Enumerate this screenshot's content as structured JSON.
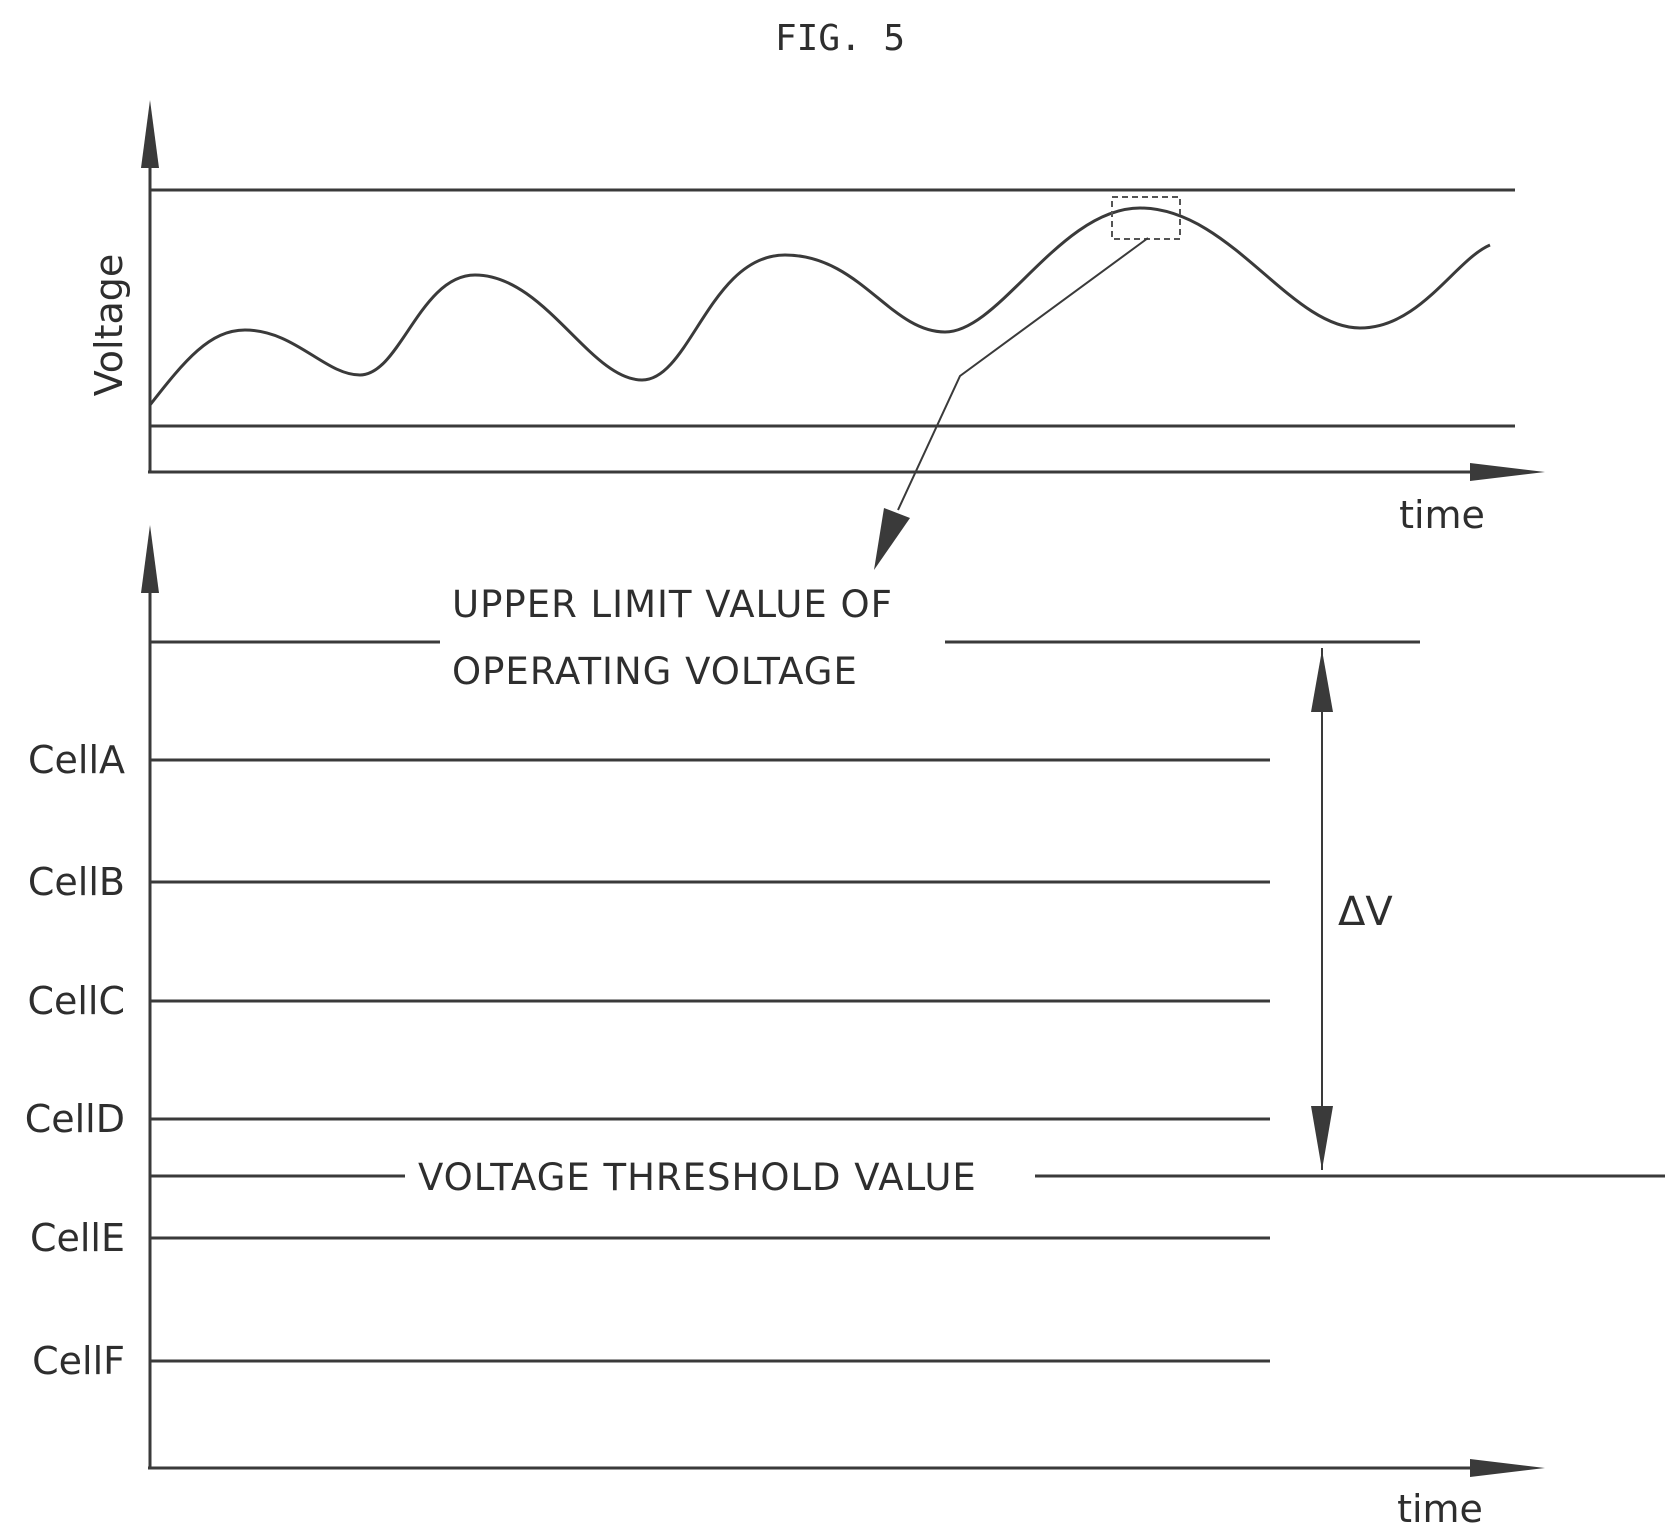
{
  "figure_label": "FIG. 5",
  "top_graph": {
    "y_axis_label": "Voltage",
    "x_axis_label": "time"
  },
  "bottom_graph": {
    "x_axis_label": "time",
    "upper_limit_label_line1": "UPPER LIMIT VALUE OF",
    "upper_limit_label_line2": "OPERATING VOLTAGE",
    "threshold_label": "VOLTAGE THRESHOLD VALUE",
    "delta_label": "ΔV",
    "cells": [
      {
        "label": "CellA"
      },
      {
        "label": "CellB"
      },
      {
        "label": "CellC"
      },
      {
        "label": "CellD"
      },
      {
        "label": "CellE"
      },
      {
        "label": "CellF"
      }
    ]
  }
}
